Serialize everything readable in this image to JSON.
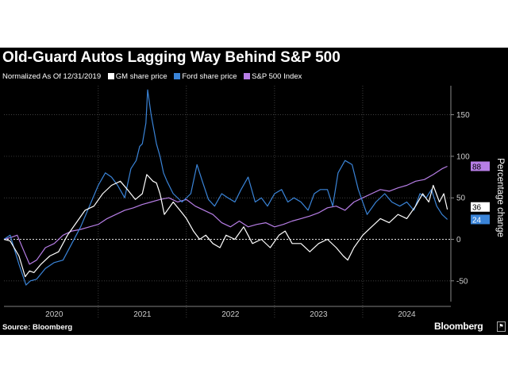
{
  "title": "Old-Guard Autos Lagging Way Behind S&P 500",
  "legend_prefix": "Normalized As Of 12/31/2019",
  "source": "Source: Bloomberg",
  "brand": "Bloomberg",
  "colors": {
    "background": "#000000",
    "gm": "#ffffff",
    "ford": "#3a84d8",
    "sp500": "#b77ee6",
    "grid": "#555555",
    "zero_line": "#ffffff"
  },
  "chart_data": {
    "type": "line",
    "title": "Old-Guard Autos Lagging Way Behind S&P 500",
    "ylabel": "Percentage change",
    "xlabel": "",
    "ylim": [
      -75,
      185
    ],
    "yticks": [
      -50,
      0,
      50,
      100,
      150
    ],
    "xlim": [
      2019.93,
      2025.0
    ],
    "x_tick_labels": [
      "2020",
      "2021",
      "2022",
      "2023",
      "2024"
    ],
    "x_tick_positions": [
      2020.5,
      2021.5,
      2022.5,
      2023.5,
      2024.5
    ],
    "year_boundaries": [
      2021,
      2022,
      2023,
      2024
    ],
    "grid": true,
    "legend_position": "top",
    "series": [
      {
        "name": "GM share price",
        "color": "#ffffff",
        "end_label": "36",
        "x": [
          2019.93,
          2020.0,
          2020.1,
          2020.17,
          2020.22,
          2020.27,
          2020.35,
          2020.45,
          2020.55,
          2020.65,
          2020.75,
          2020.85,
          2020.95,
          2021.05,
          2021.15,
          2021.25,
          2021.33,
          2021.42,
          2021.5,
          2021.55,
          2021.62,
          2021.66,
          2021.7,
          2021.75,
          2021.85,
          2021.95,
          2022.0,
          2022.08,
          2022.15,
          2022.22,
          2022.3,
          2022.38,
          2022.45,
          2022.55,
          2022.65,
          2022.75,
          2022.85,
          2022.95,
          2023.05,
          2023.12,
          2023.2,
          2023.3,
          2023.4,
          2023.5,
          2023.6,
          2023.7,
          2023.78,
          2023.83,
          2023.9,
          2024.0,
          2024.1,
          2024.2,
          2024.3,
          2024.4,
          2024.5,
          2024.6,
          2024.68,
          2024.75,
          2024.8,
          2024.87,
          2024.92,
          2024.96
        ],
        "values": [
          0,
          -2,
          -20,
          -45,
          -38,
          -40,
          -30,
          -20,
          -15,
          5,
          20,
          35,
          40,
          55,
          65,
          70,
          60,
          48,
          55,
          78,
          70,
          68,
          55,
          30,
          45,
          32,
          25,
          10,
          0,
          5,
          -5,
          -10,
          5,
          0,
          15,
          -5,
          0,
          -10,
          5,
          10,
          -5,
          -5,
          -15,
          -5,
          0,
          -10,
          -20,
          -25,
          -10,
          5,
          15,
          25,
          20,
          30,
          25,
          40,
          55,
          45,
          65,
          45,
          55,
          36
        ]
      },
      {
        "name": "Ford share price",
        "color": "#3a84d8",
        "end_label": "24",
        "x": [
          2019.93,
          2020.0,
          2020.1,
          2020.18,
          2020.23,
          2020.3,
          2020.4,
          2020.5,
          2020.6,
          2020.7,
          2020.8,
          2020.9,
          2021.0,
          2021.08,
          2021.15,
          2021.22,
          2021.3,
          2021.37,
          2021.43,
          2021.47,
          2021.5,
          2021.54,
          2021.56,
          2021.6,
          2021.66,
          2021.7,
          2021.74,
          2021.78,
          2021.85,
          2021.95,
          2022.05,
          2022.12,
          2022.18,
          2022.25,
          2022.32,
          2022.4,
          2022.47,
          2022.55,
          2022.62,
          2022.7,
          2022.78,
          2022.85,
          2022.92,
          2023.0,
          2023.08,
          2023.15,
          2023.22,
          2023.3,
          2023.38,
          2023.45,
          2023.52,
          2023.6,
          2023.66,
          2023.72,
          2023.8,
          2023.88,
          2023.95,
          2024.05,
          2024.15,
          2024.25,
          2024.33,
          2024.42,
          2024.5,
          2024.58,
          2024.65,
          2024.72,
          2024.78,
          2024.84,
          2024.9,
          2024.96
        ],
        "values": [
          0,
          5,
          -30,
          -55,
          -50,
          -48,
          -35,
          -28,
          -25,
          -5,
          15,
          40,
          65,
          80,
          75,
          65,
          50,
          85,
          95,
          112,
          115,
          140,
          180,
          150,
          115,
          100,
          80,
          70,
          55,
          45,
          55,
          90,
          70,
          48,
          40,
          55,
          50,
          45,
          60,
          75,
          45,
          50,
          40,
          55,
          60,
          45,
          50,
          45,
          35,
          55,
          60,
          60,
          40,
          80,
          95,
          90,
          60,
          30,
          45,
          55,
          45,
          40,
          45,
          35,
          55,
          50,
          60,
          40,
          30,
          24
        ]
      },
      {
        "name": "S&P 500 Index",
        "color": "#b77ee6",
        "end_label": "88",
        "x": [
          2019.93,
          2020.0,
          2020.08,
          2020.16,
          2020.22,
          2020.3,
          2020.4,
          2020.5,
          2020.6,
          2020.7,
          2020.8,
          2020.9,
          2021.0,
          2021.1,
          2021.2,
          2021.3,
          2021.4,
          2021.5,
          2021.6,
          2021.7,
          2021.8,
          2021.9,
          2022.0,
          2022.1,
          2022.2,
          2022.3,
          2022.4,
          2022.5,
          2022.6,
          2022.7,
          2022.8,
          2022.9,
          2023.0,
          2023.1,
          2023.2,
          2023.3,
          2023.4,
          2023.5,
          2023.6,
          2023.7,
          2023.8,
          2023.9,
          2024.0,
          2024.1,
          2024.2,
          2024.3,
          2024.4,
          2024.5,
          2024.6,
          2024.7,
          2024.8,
          2024.9,
          2024.96
        ],
        "values": [
          0,
          2,
          5,
          -15,
          -30,
          -25,
          -10,
          -5,
          5,
          10,
          12,
          15,
          18,
          25,
          30,
          35,
          38,
          42,
          45,
          48,
          50,
          45,
          48,
          40,
          35,
          30,
          20,
          15,
          22,
          15,
          18,
          20,
          15,
          18,
          22,
          25,
          28,
          32,
          38,
          40,
          35,
          45,
          50,
          55,
          60,
          58,
          62,
          65,
          70,
          72,
          78,
          85,
          88
        ]
      }
    ]
  }
}
